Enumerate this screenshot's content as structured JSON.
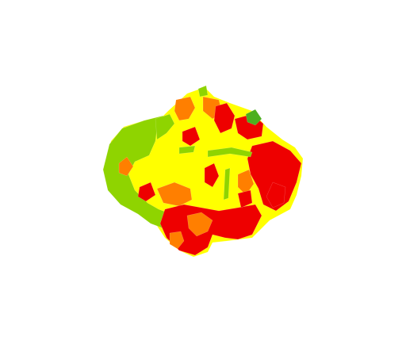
{
  "map": {
    "type": "choropleth",
    "classes": [
      {
        "key": "green-light",
        "color": "#8fd400"
      },
      {
        "key": "green-dark",
        "color": "#4caf1f"
      },
      {
        "key": "yellow",
        "color": "#ffff00"
      },
      {
        "key": "orange",
        "color": "#ff7f00"
      },
      {
        "key": "red",
        "color": "#ee0000"
      }
    ]
  }
}
